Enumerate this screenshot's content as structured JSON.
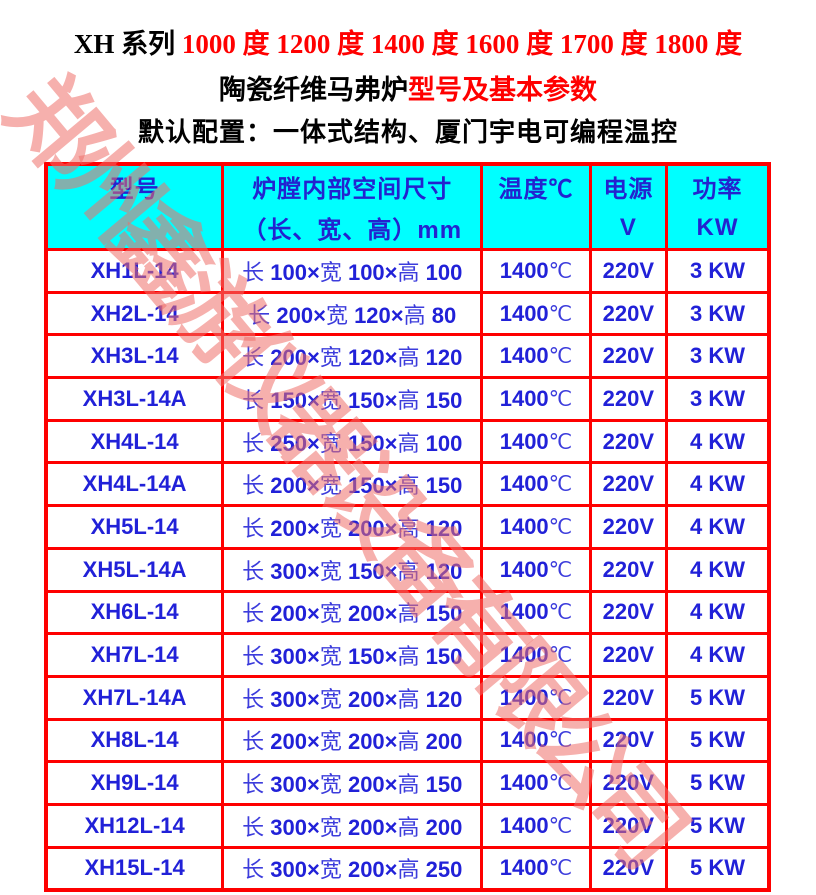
{
  "page": {
    "title_line1": {
      "black": "XH 系列 ",
      "red": "1000 度 1200 度 1400 度 1600 度 1700 度 1800 度"
    },
    "title_line2": {
      "black": "陶瓷纤维马弗炉",
      "red": "型号及基本参数"
    },
    "title_line3": "默认配置：一体式结构、厦门宇电可编程温控",
    "watermark": "郑州鑫游仪器设备有限公司"
  },
  "colors": {
    "border_red": "#fe0000",
    "header_bg_cyan": "#00ffff",
    "text_blue": "#2121d8",
    "title_red": "#ff0000",
    "title_black": "#000000",
    "watermark_salmon": "#ee706a"
  },
  "table": {
    "headers": {
      "col1": "型号",
      "col2_line1": "炉膛内部空间尺寸",
      "col2_line2": "（长、宽、高）mm",
      "col3": "温度℃",
      "col4_line1": "电源",
      "col4_line2": "V",
      "col5_line1": "功率",
      "col5_line2": "KW"
    },
    "dim_labels": {
      "length": "长",
      "width": "宽",
      "height": "高"
    },
    "temp_unit": "℃",
    "rows": [
      {
        "model": "XH1L-14",
        "l": "100",
        "w": "100",
        "h": "100",
        "temp": "1400",
        "voltage": "220V",
        "power": "3 KW"
      },
      {
        "model": "XH2L-14",
        "l": "200",
        "w": "120",
        "h": "80",
        "temp": "1400",
        "voltage": "220V",
        "power": "3 KW"
      },
      {
        "model": "XH3L-14",
        "l": "200",
        "w": "120",
        "h": "120",
        "temp": "1400",
        "voltage": "220V",
        "power": "3 KW"
      },
      {
        "model": "XH3L-14A",
        "l": "150",
        "w": "150",
        "h": "150",
        "temp": "1400",
        "voltage": "220V",
        "power": "3 KW"
      },
      {
        "model": "XH4L-14",
        "l": "250",
        "w": "150",
        "h": "100",
        "temp": "1400",
        "voltage": "220V",
        "power": "4 KW"
      },
      {
        "model": "XH4L-14A",
        "l": "200",
        "w": "150",
        "h": "150",
        "temp": "1400",
        "voltage": "220V",
        "power": "4 KW"
      },
      {
        "model": "XH5L-14",
        "l": "200",
        "w": "200",
        "h": "120",
        "temp": "1400",
        "voltage": "220V",
        "power": "4 KW"
      },
      {
        "model": "XH5L-14A",
        "l": "300",
        "w": "150",
        "h": "120",
        "temp": "1400",
        "voltage": "220V",
        "power": "4 KW"
      },
      {
        "model": "XH6L-14",
        "l": "200",
        "w": "200",
        "h": "150",
        "temp": "1400",
        "voltage": "220V",
        "power": "4 KW"
      },
      {
        "model": "XH7L-14",
        "l": "300",
        "w": "150",
        "h": "150",
        "temp": "1400",
        "voltage": "220V",
        "power": "4 KW"
      },
      {
        "model": "XH7L-14A",
        "l": "300",
        "w": "200",
        "h": "120",
        "temp": "1400",
        "voltage": "220V",
        "power": "5 KW"
      },
      {
        "model": "XH8L-14",
        "l": "200",
        "w": "200",
        "h": "200",
        "temp": "1400",
        "voltage": "220V",
        "power": "5 KW"
      },
      {
        "model": "XH9L-14",
        "l": "300",
        "w": "200",
        "h": "150",
        "temp": "1400",
        "voltage": "220V",
        "power": "5 KW"
      },
      {
        "model": "XH12L-14",
        "l": "300",
        "w": "200",
        "h": "200",
        "temp": "1400",
        "voltage": "220V",
        "power": "5 KW"
      },
      {
        "model": "XH15L-14",
        "l": "300",
        "w": "200",
        "h": "250",
        "temp": "1400",
        "voltage": "220V",
        "power": "5 KW"
      }
    ]
  }
}
